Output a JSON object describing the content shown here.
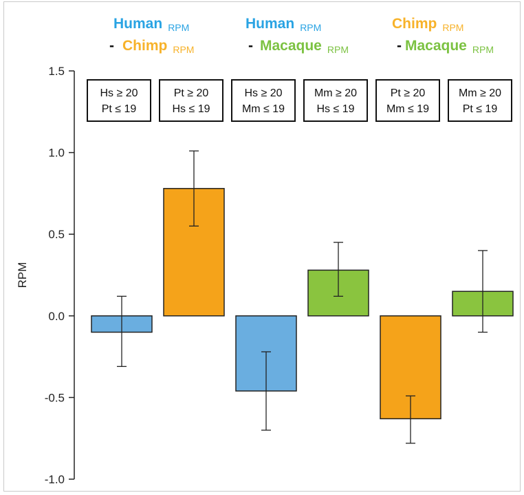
{
  "colors": {
    "human": "#6aaee0",
    "chimp": "#f5a31a",
    "macaque": "#8ac43f",
    "human_text": "#29a3e3",
    "chimp_text": "#f7b22a",
    "macaque_text": "#7cc242"
  },
  "headers": [
    {
      "line1": "Human",
      "line1_sub": "RPM",
      "line1_color": "human_text",
      "dash": "-",
      "line2": "Chimp",
      "line2_sub": "RPM",
      "line2_color": "chimp_text"
    },
    {
      "line1": "Human",
      "line1_sub": "RPM",
      "line1_color": "human_text",
      "dash": "-",
      "line2": "Macaque",
      "line2_sub": "RPM",
      "line2_color": "macaque_text"
    },
    {
      "line1": "Chimp",
      "line1_sub": "RPM",
      "line1_color": "chimp_text",
      "dash": "-",
      "line2": "Macaque",
      "line2_sub": "RPM",
      "line2_color": "macaque_text"
    }
  ],
  "chart_data": {
    "type": "bar",
    "title": "",
    "xlabel": "",
    "ylabel": "RPM",
    "ylim": [
      -1.0,
      1.5
    ],
    "yticks": [
      "1.5",
      "1.0",
      "0.5",
      "0.0",
      "-0.5",
      "-1.0"
    ],
    "ytick_values": [
      1.5,
      1.0,
      0.5,
      0.0,
      -0.5,
      -1.0
    ],
    "grid": false,
    "bars": [
      {
        "label_line1": "Hs ≥ 20",
        "label_line2": "Pt ≤ 19",
        "value": -0.1,
        "err_low": -0.31,
        "err_high": 0.12,
        "color": "human"
      },
      {
        "label_line1": "Pt ≥ 20",
        "label_line2": "Hs ≤ 19",
        "value": 0.78,
        "err_low": 0.55,
        "err_high": 1.01,
        "color": "chimp"
      },
      {
        "label_line1": "Hs ≥ 20",
        "label_line2": "Mm ≤ 19",
        "value": -0.46,
        "err_low": -0.7,
        "err_high": -0.22,
        "color": "human"
      },
      {
        "label_line1": "Mm ≥ 20",
        "label_line2": "Hs ≤ 19",
        "value": 0.28,
        "err_low": 0.12,
        "err_high": 0.45,
        "color": "macaque"
      },
      {
        "label_line1": "Pt ≥ 20",
        "label_line2": "Mm ≤ 19",
        "value": -0.63,
        "err_low": -0.78,
        "err_high": -0.49,
        "color": "chimp"
      },
      {
        "label_line1": "Mm ≥ 20",
        "label_line2": "Pt ≤ 19",
        "value": 0.15,
        "err_low": -0.1,
        "err_high": 0.4,
        "color": "macaque"
      }
    ]
  }
}
